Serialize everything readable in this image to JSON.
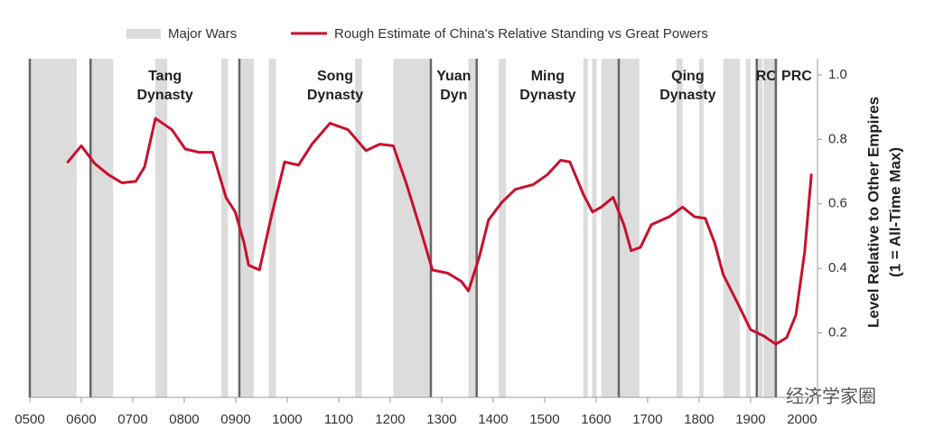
{
  "chart_data": {
    "type": "line",
    "x": [
      574,
      600,
      626,
      653,
      679,
      706,
      723,
      744,
      776,
      802,
      828,
      855,
      881,
      899,
      916,
      925,
      946,
      969,
      995,
      1022,
      1048,
      1083,
      1118,
      1153,
      1180,
      1206,
      1232,
      1259,
      1282,
      1312,
      1338,
      1352,
      1373,
      1391,
      1417,
      1443,
      1478,
      1505,
      1531,
      1549,
      1575,
      1593,
      1610,
      1633,
      1654,
      1668,
      1686,
      1707,
      1742,
      1768,
      1791,
      1812,
      1830,
      1847,
      1874,
      1900,
      1926,
      1949,
      1970,
      1988,
      2005,
      2018
    ],
    "series": [
      {
        "name": "Rough Estimate of China's Relative Standing vs Great Powers",
        "color": "#c8102e",
        "values": [
          0.73,
          0.78,
          0.725,
          0.69,
          0.665,
          0.67,
          0.715,
          0.865,
          0.83,
          0.77,
          0.76,
          0.76,
          0.62,
          0.575,
          0.48,
          0.41,
          0.395,
          0.56,
          0.73,
          0.72,
          0.785,
          0.85,
          0.83,
          0.765,
          0.785,
          0.78,
          0.66,
          0.52,
          0.395,
          0.385,
          0.36,
          0.33,
          0.435,
          0.55,
          0.605,
          0.645,
          0.66,
          0.69,
          0.735,
          0.73,
          0.63,
          0.575,
          0.59,
          0.62,
          0.535,
          0.455,
          0.465,
          0.535,
          0.56,
          0.59,
          0.56,
          0.555,
          0.48,
          0.38,
          0.295,
          0.21,
          0.19,
          0.165,
          0.185,
          0.255,
          0.45,
          0.69
        ]
      }
    ],
    "war_series": {
      "name": "Major Wars",
      "color": "#dcdcdc",
      "periods": [
        [
          500,
          591
        ],
        [
          618,
          662
        ],
        [
          744,
          767
        ],
        [
          872,
          885
        ],
        [
          907,
          935
        ],
        [
          964,
          978
        ],
        [
          1132,
          1145
        ],
        [
          1206,
          1279
        ],
        [
          1352,
          1368
        ],
        [
          1411,
          1425
        ],
        [
          1575,
          1584
        ],
        [
          1592,
          1601
        ],
        [
          1610,
          1645
        ],
        [
          1645,
          1684
        ],
        [
          1756,
          1768
        ],
        [
          1800,
          1809
        ],
        [
          1847,
          1879
        ],
        [
          1891,
          1900
        ],
        [
          1913,
          1923
        ],
        [
          1925,
          1952
        ]
      ]
    },
    "dynasties": [
      {
        "start": 618,
        "label": [
          "Tang",
          "Dynasty"
        ]
      },
      {
        "start": 907,
        "label": [
          "Song",
          "Dynasty"
        ]
      },
      {
        "start": 1279,
        "label": [
          "Yuan",
          "Dyn"
        ]
      },
      {
        "start": 1368,
        "label": [
          "Ming",
          "Dynasty"
        ]
      },
      {
        "start": 1644,
        "label": [
          "Qing",
          "Dynasty"
        ]
      },
      {
        "start": 1912,
        "label": [
          "RC"
        ]
      },
      {
        "start": 1949,
        "label": [
          "PRC"
        ]
      }
    ],
    "xlim": [
      500,
      2030
    ],
    "xticks": [
      {
        "value": 500,
        "label": "0500"
      },
      {
        "value": 600,
        "label": "0600"
      },
      {
        "value": 700,
        "label": "0700"
      },
      {
        "value": 800,
        "label": "0800"
      },
      {
        "value": 900,
        "label": "0900"
      },
      1000,
      1100,
      1200,
      1300,
      1400,
      1500,
      1600,
      1700,
      1800,
      1900,
      2000
    ],
    "ylim": [
      0,
      1.05
    ],
    "yticks": [
      0.2,
      0.4,
      0.6,
      0.8,
      {
        "value": 1,
        "label": "1.0"
      }
    ],
    "y_label": [
      "Level Relative to Other Empires",
      "(1 = All-Time Max)"
    ],
    "watermark": "经济学家圈"
  }
}
